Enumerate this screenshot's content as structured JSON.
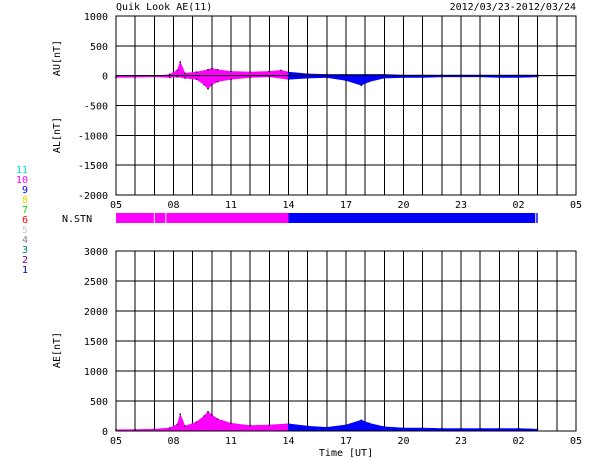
{
  "header": {
    "title": "Quik Look AE(11)",
    "date_range": "2012/03/23-2012/03/24"
  },
  "legend": {
    "items": [
      {
        "label": "11",
        "color": "#00e0e0"
      },
      {
        "label": "10",
        "color": "#ff00ff"
      },
      {
        "label": "9",
        "color": "#0000ff"
      },
      {
        "label": "8",
        "color": "#e0e000"
      },
      {
        "label": "7",
        "color": "#00e000"
      },
      {
        "label": "6",
        "color": "#ff0000"
      },
      {
        "label": "5",
        "color": "#cccccc"
      },
      {
        "label": "4",
        "color": "#888888"
      },
      {
        "label": "3",
        "color": "#008080"
      },
      {
        "label": "2",
        "color": "#800080"
      },
      {
        "label": "1",
        "color": "#000080"
      }
    ]
  },
  "station_bar": {
    "label": "N.STN",
    "segments": [
      {
        "from": 0,
        "to": 9,
        "color": "#ff00ff",
        "stations": 10
      },
      {
        "from": 9,
        "to": 22,
        "color": "#0000ff",
        "stations": 9
      }
    ]
  },
  "chart_data": [
    {
      "type": "area",
      "ylabel_top": "AU[nT]",
      "ylabel_bottom": "AL[nT]",
      "ylim": [
        -2000,
        1000
      ],
      "yticks": [
        1000,
        500,
        0,
        -500,
        -1000,
        -1500,
        -2000
      ],
      "xlim": [
        0,
        24
      ],
      "xtick_labels": [
        "05",
        "08",
        "11",
        "14",
        "17",
        "20",
        "23",
        "02",
        "05"
      ],
      "xtick_positions": [
        0,
        3,
        6,
        9,
        12,
        15,
        18,
        21,
        24
      ],
      "grid": true,
      "series": [
        {
          "name": "AU",
          "x": [
            0,
            1,
            2,
            2.8,
            3.2,
            3.35,
            3.6,
            4.2,
            4.8,
            5.0,
            5.3,
            6,
            7,
            8,
            8.6,
            9,
            10,
            11,
            12,
            13,
            14,
            15,
            16,
            17,
            18,
            19,
            20,
            21,
            22
          ],
          "values": [
            -20,
            -15,
            -10,
            20,
            90,
            230,
            40,
            60,
            100,
            120,
            100,
            70,
            60,
            70,
            90,
            60,
            30,
            20,
            20,
            20,
            20,
            10,
            10,
            10,
            10,
            10,
            10,
            10,
            10
          ],
          "colors": [
            {
              "until": 9,
              "color": "#ff00ff"
            },
            {
              "until": 22,
              "color": "#0000ff"
            }
          ]
        },
        {
          "name": "AL",
          "x": [
            0,
            1,
            2,
            2.8,
            3.2,
            3.6,
            4.2,
            4.6,
            4.8,
            5.0,
            5.3,
            6,
            7,
            8,
            9,
            10,
            11,
            12,
            12.8,
            13.2,
            14,
            15,
            16,
            17,
            18,
            19,
            20,
            21,
            22
          ],
          "values": [
            -30,
            -25,
            -20,
            -30,
            -20,
            -40,
            -60,
            -150,
            -220,
            -150,
            -100,
            -60,
            -30,
            -20,
            -60,
            -40,
            -30,
            -80,
            -160,
            -100,
            -40,
            -30,
            -30,
            -20,
            -20,
            -20,
            -30,
            -30,
            -20
          ],
          "colors": [
            {
              "until": 9,
              "color": "#ff00ff"
            },
            {
              "until": 22,
              "color": "#0000ff"
            }
          ]
        }
      ]
    },
    {
      "type": "area",
      "ylabel": "AE[nT]",
      "ylim": [
        0,
        3000
      ],
      "yticks": [
        3000,
        2500,
        2000,
        1500,
        1000,
        500,
        0
      ],
      "xlim": [
        0,
        24
      ],
      "xtick_labels": [
        "05",
        "08",
        "11",
        "14",
        "17",
        "20",
        "23",
        "02",
        "05"
      ],
      "xtick_positions": [
        0,
        3,
        6,
        9,
        12,
        15,
        18,
        21,
        24
      ],
      "xlabel": "Time [UT]",
      "grid": true,
      "series": [
        {
          "name": "AE",
          "x": [
            0,
            1,
            2,
            2.8,
            3.2,
            3.35,
            3.6,
            4.2,
            4.6,
            4.8,
            5.0,
            5.3,
            6,
            7,
            8,
            9,
            10,
            11,
            12,
            12.8,
            13.2,
            14,
            15,
            16,
            17,
            18,
            19,
            20,
            21,
            22
          ],
          "values": [
            20,
            25,
            30,
            50,
            110,
            280,
            80,
            150,
            250,
            320,
            270,
            200,
            130,
            90,
            100,
            120,
            80,
            60,
            100,
            180,
            130,
            70,
            50,
            50,
            40,
            40,
            40,
            40,
            40,
            30
          ],
          "colors": [
            {
              "until": 9,
              "color": "#ff00ff"
            },
            {
              "until": 22,
              "color": "#0000ff"
            }
          ]
        }
      ]
    }
  ]
}
